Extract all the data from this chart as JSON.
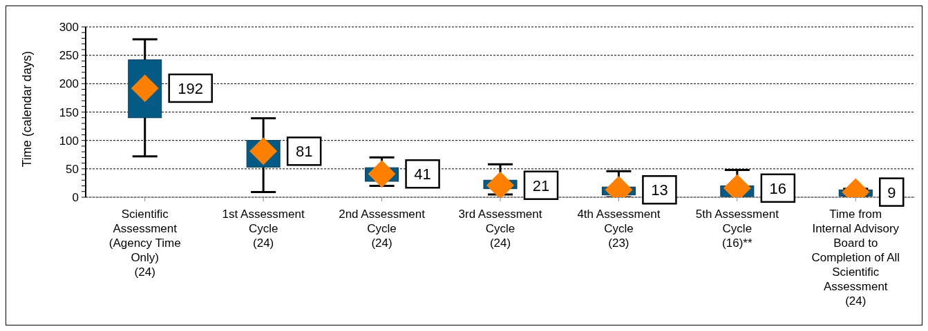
{
  "chart_data": {
    "type": "box",
    "ylabel": "Time (calendar days)",
    "categories": [
      "Scientific Assessment (Agency Time Only)\n(24)",
      "1st Assessment Cycle\n(24)",
      "2nd Assessment Cycle\n(24)",
      "3rd Assessment Cycle\n(24)",
      "4th Assessment Cycle\n(23)",
      "5th Assessment Cycle\n(16)**",
      "Time from Internal Advisory Board to Completion of All Scientific Assessment\n(24)"
    ],
    "series": [
      {
        "color": "#025a85",
        "boxes": [
          {
            "low": 72,
            "q1": 140,
            "q3": 242,
            "high": 278
          },
          {
            "low": 9,
            "q1": 53,
            "q3": 100,
            "high": 139
          },
          {
            "low": 20,
            "q1": 28,
            "q3": 52,
            "high": 70
          },
          {
            "low": 5,
            "q1": 15,
            "q3": 30,
            "high": 58
          },
          {
            "low": 0,
            "q1": 4,
            "q3": 18,
            "high": 46
          },
          {
            "low": 0,
            "q1": 1,
            "q3": 20,
            "high": 48
          },
          {
            "low": 2,
            "q1": 2,
            "q3": 13,
            "high": 15
          }
        ]
      },
      {
        "type": "scatter",
        "color": "#ff8000",
        "marker": "diamond",
        "x": [
          "Scientific Assessment (Agency Time Only)\n(24)",
          "1st Assessment Cycle\n(24)",
          "2nd Assessment Cycle\n(24)",
          "3rd Assessment Cycle\n(24)",
          "4th Assessment Cycle\n(23)",
          "5th Assessment Cycle\n(16)**",
          "Time from Internal Advisory Board to Completion of All Scientific Assessment\n(24)"
        ],
        "values": [
          192,
          81,
          41,
          21,
          13,
          16,
          9
        ]
      }
    ],
    "data_labels": true,
    "ylim": [
      0,
      300
    ],
    "yticks": [
      0,
      {
        "value": 10,
        "label": null
      },
      {
        "value": 20,
        "label": null
      },
      {
        "value": 30,
        "label": null
      },
      {
        "value": 40,
        "label": null
      },
      50,
      {
        "value": 60,
        "label": null
      },
      {
        "value": 70,
        "label": null
      },
      {
        "value": 80,
        "label": null
      },
      {
        "value": 90,
        "label": null
      },
      100,
      {
        "value": 110,
        "label": null
      },
      {
        "value": 120,
        "label": null
      },
      {
        "value": 130,
        "label": null
      },
      {
        "value": 140,
        "label": null
      },
      150,
      {
        "value": 160,
        "label": null
      },
      {
        "value": 170,
        "label": null
      },
      {
        "value": 180,
        "label": null
      },
      {
        "value": 190,
        "label": null
      },
      200,
      {
        "value": 210,
        "label": null
      },
      {
        "value": 220,
        "label": null
      },
      {
        "value": 230,
        "label": null
      },
      {
        "value": 240,
        "label": null
      },
      250,
      {
        "value": 260,
        "label": null
      },
      {
        "value": 270,
        "label": null
      },
      {
        "value": 280,
        "label": null
      },
      {
        "value": 290,
        "label": null
      },
      300
    ],
    "grid": "y"
  }
}
